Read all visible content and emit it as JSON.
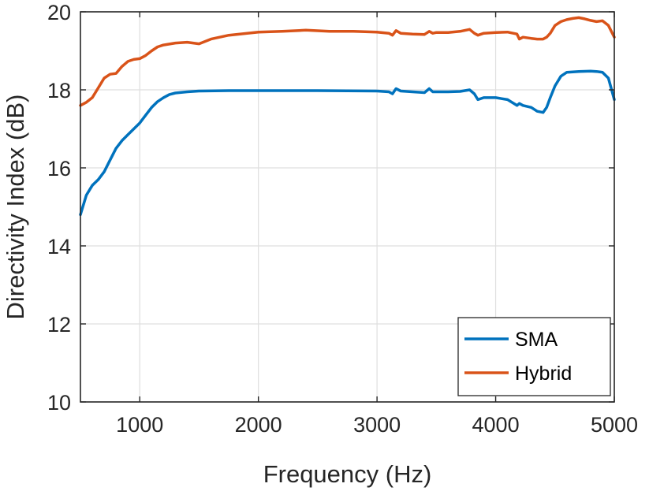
{
  "chart_data": {
    "type": "line",
    "title": "",
    "xlabel": "Frequency (Hz)",
    "ylabel": "Directivity Index (dB)",
    "xlim": [
      500,
      5000
    ],
    "ylim": [
      10,
      20
    ],
    "xticks": [
      1000,
      2000,
      3000,
      4000,
      5000
    ],
    "yticks": [
      10,
      12,
      14,
      16,
      18,
      20
    ],
    "xtick_labels": [
      "1000",
      "2000",
      "3000",
      "4000",
      "5000"
    ],
    "ytick_labels": [
      "10",
      "12",
      "14",
      "16",
      "18",
      "20"
    ],
    "grid": true,
    "legend_position": "bottom-right",
    "colors": {
      "axis": "#262626",
      "grid": "#dfdfdf",
      "SMA": "#0072BD",
      "Hybrid": "#D95319"
    },
    "series": [
      {
        "name": "SMA",
        "x": [
          500,
          550,
          600,
          650,
          700,
          750,
          800,
          850,
          900,
          950,
          1000,
          1050,
          1100,
          1150,
          1200,
          1250,
          1300,
          1400,
          1500,
          1750,
          2000,
          2500,
          3000,
          3100,
          3130,
          3160,
          3200,
          3300,
          3400,
          3440,
          3470,
          3500,
          3600,
          3700,
          3780,
          3820,
          3850,
          3900,
          4000,
          4100,
          4180,
          4200,
          4230,
          4300,
          4350,
          4400,
          4430,
          4460,
          4500,
          4550,
          4600,
          4700,
          4800,
          4850,
          4900,
          4950,
          5000
        ],
        "y": [
          14.8,
          15.3,
          15.55,
          15.7,
          15.9,
          16.2,
          16.5,
          16.7,
          16.85,
          17.0,
          17.15,
          17.35,
          17.55,
          17.7,
          17.8,
          17.88,
          17.92,
          17.95,
          17.97,
          17.98,
          17.98,
          17.98,
          17.97,
          17.95,
          17.9,
          18.03,
          17.97,
          17.95,
          17.93,
          18.03,
          17.95,
          17.95,
          17.95,
          17.96,
          18.0,
          17.9,
          17.75,
          17.8,
          17.8,
          17.75,
          17.6,
          17.65,
          17.6,
          17.55,
          17.45,
          17.42,
          17.55,
          17.8,
          18.1,
          18.35,
          18.45,
          18.47,
          18.48,
          18.47,
          18.45,
          18.3,
          17.75
        ]
      },
      {
        "name": "Hybrid",
        "x": [
          500,
          550,
          600,
          650,
          700,
          750,
          800,
          850,
          900,
          950,
          1000,
          1050,
          1100,
          1150,
          1200,
          1300,
          1400,
          1500,
          1600,
          1750,
          2000,
          2200,
          2400,
          2600,
          2800,
          3000,
          3100,
          3130,
          3160,
          3200,
          3300,
          3400,
          3440,
          3470,
          3500,
          3600,
          3700,
          3780,
          3820,
          3850,
          3900,
          4000,
          4100,
          4180,
          4200,
          4230,
          4300,
          4350,
          4400,
          4430,
          4460,
          4500,
          4550,
          4600,
          4650,
          4700,
          4750,
          4800,
          4850,
          4900,
          4950,
          5000
        ],
        "y": [
          17.6,
          17.68,
          17.8,
          18.05,
          18.3,
          18.4,
          18.42,
          18.6,
          18.73,
          18.78,
          18.8,
          18.88,
          19.0,
          19.1,
          19.15,
          19.2,
          19.22,
          19.18,
          19.3,
          19.4,
          19.48,
          19.5,
          19.53,
          19.5,
          19.5,
          19.48,
          19.45,
          19.4,
          19.52,
          19.45,
          19.43,
          19.42,
          19.5,
          19.45,
          19.47,
          19.47,
          19.5,
          19.55,
          19.45,
          19.4,
          19.45,
          19.47,
          19.48,
          19.43,
          19.3,
          19.35,
          19.32,
          19.3,
          19.3,
          19.35,
          19.45,
          19.65,
          19.75,
          19.8,
          19.83,
          19.85,
          19.82,
          19.78,
          19.75,
          19.77,
          19.65,
          19.35
        ]
      }
    ]
  }
}
